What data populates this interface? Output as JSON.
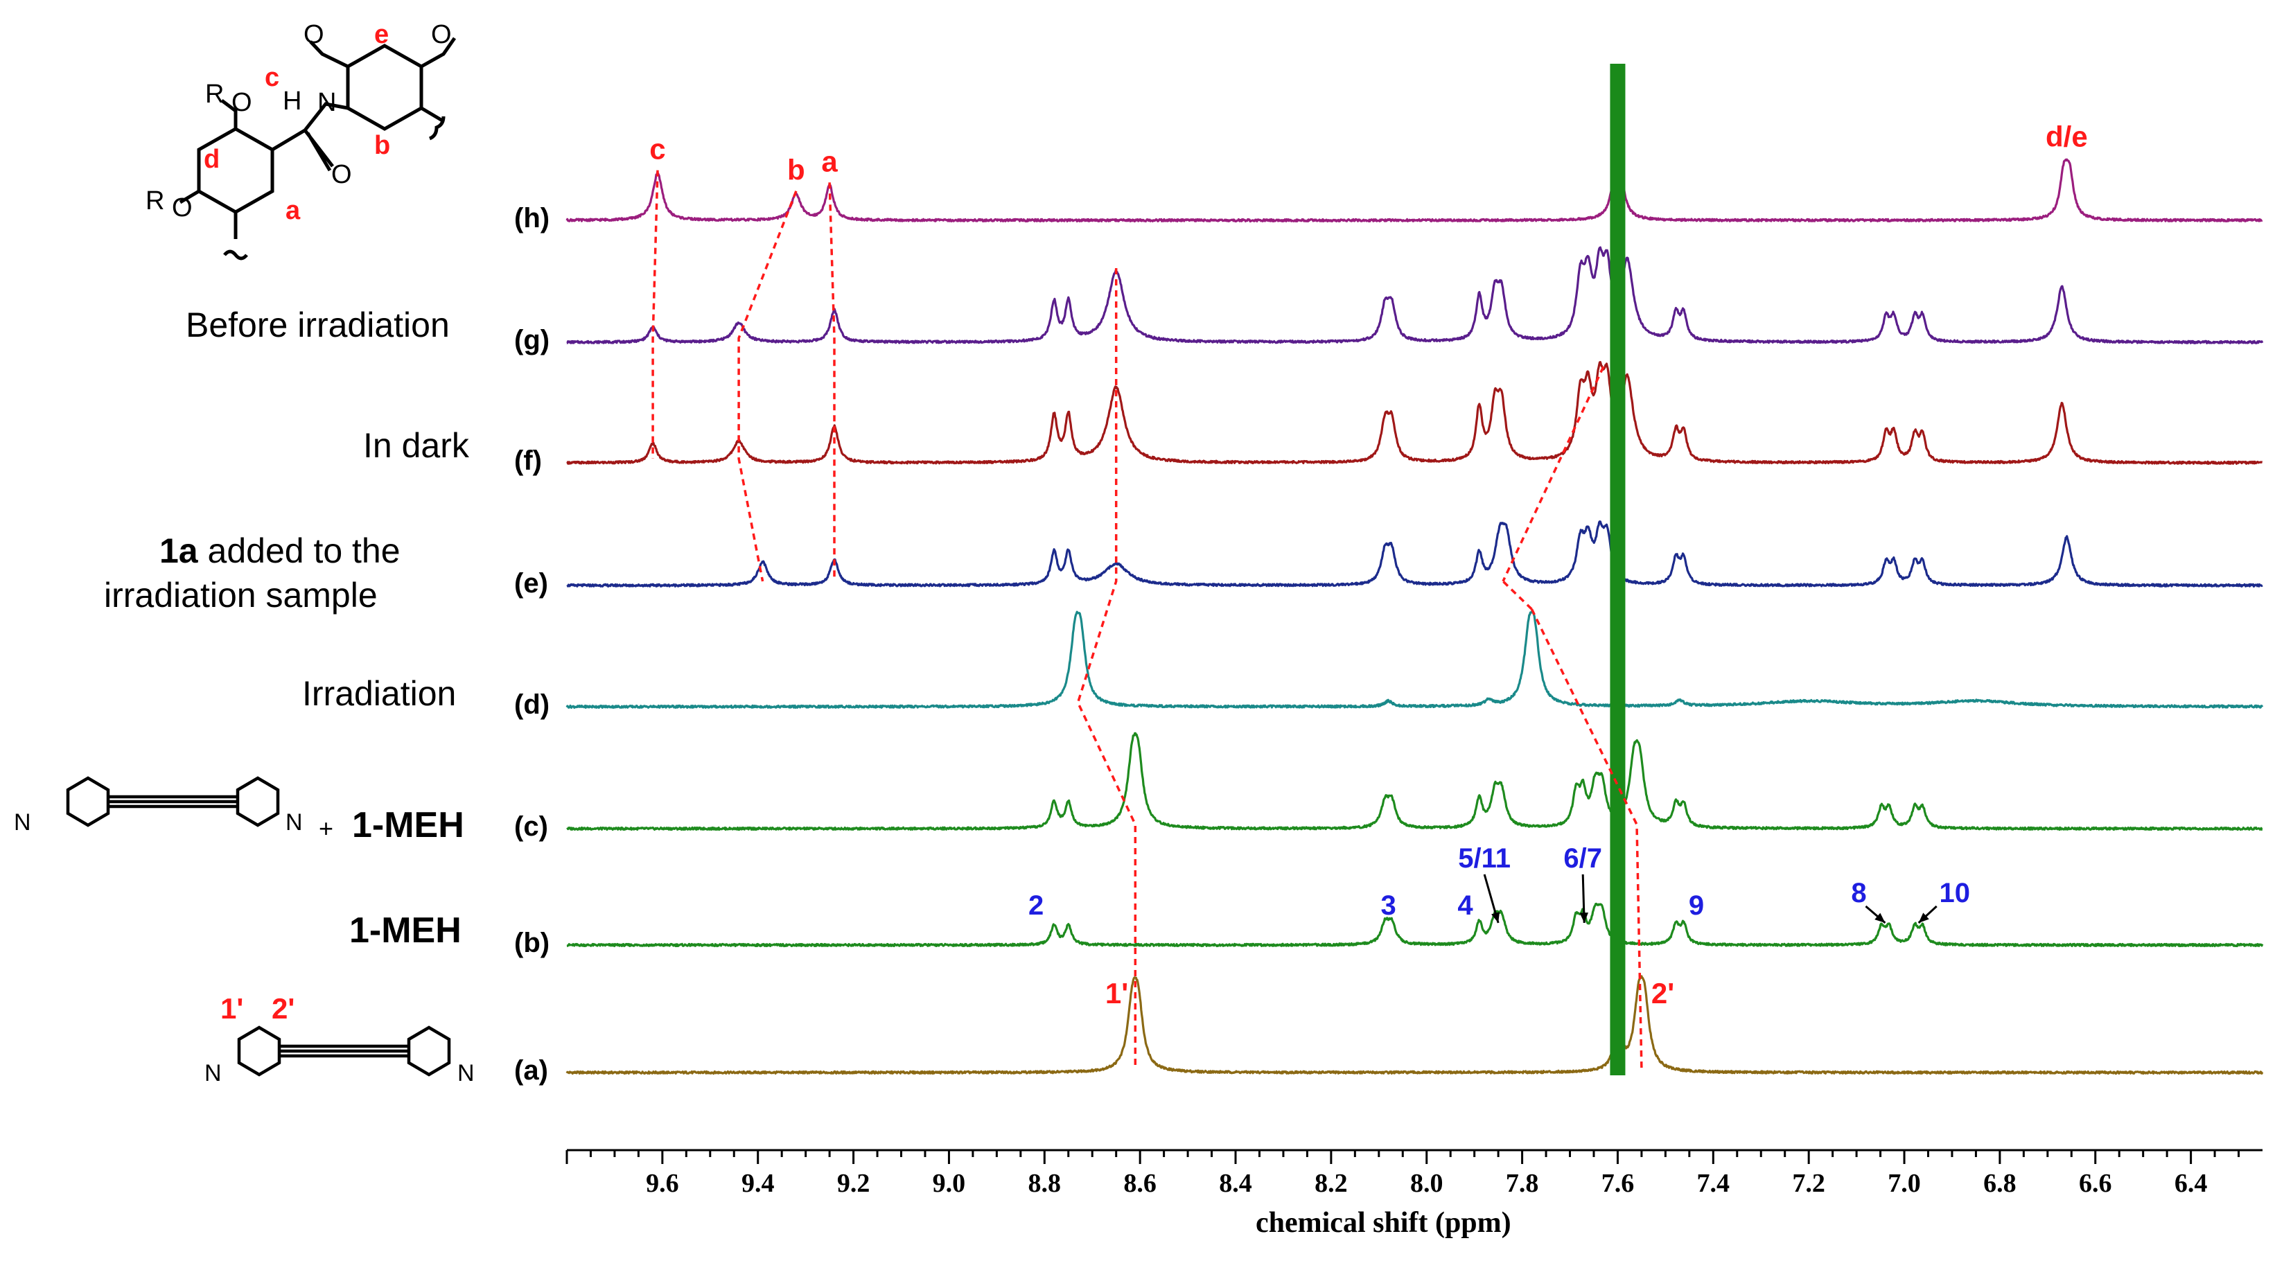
{
  "chart_data": {
    "type": "line",
    "title": "",
    "xlabel": "chemical shift (ppm)",
    "ylabel": "",
    "xlim": [
      9.8,
      6.25
    ],
    "x_reversed": true,
    "xticks": [
      9.6,
      9.4,
      9.2,
      9.0,
      8.8,
      8.6,
      8.4,
      8.2,
      8.0,
      7.8,
      7.6,
      7.4,
      7.2,
      7.0,
      6.8,
      6.6,
      6.4
    ],
    "xtick_labels": [
      "9.6",
      "9.4",
      "9.2",
      "9.0",
      "8.8",
      "8.6",
      "8.4",
      "8.2",
      "8.0",
      "7.8",
      "7.6",
      "7.4",
      "7.2",
      "7.0",
      "6.8",
      "6.6",
      "6.4"
    ],
    "solvent_peak_ppm": 7.6,
    "series": [
      {
        "id": "a",
        "name": "(a)",
        "description": "",
        "color": "#8B6914",
        "peaks": [
          {
            "ppm": 8.61,
            "h": 55,
            "w": 0.012,
            "split": 0.012
          },
          {
            "ppm": 7.55,
            "h": 55,
            "w": 0.012,
            "split": 0.012
          },
          {
            "ppm": 7.6,
            "h": 52,
            "w": 0.008,
            "split": 0
          }
        ]
      },
      {
        "id": "b",
        "name": "(b)",
        "description": "1-MEH",
        "color": "#1E8B1E",
        "peaks": [
          {
            "ppm": 8.78,
            "h": 18,
            "w": 0.008,
            "split": 0
          },
          {
            "ppm": 8.75,
            "h": 18,
            "w": 0.008,
            "split": 0
          },
          {
            "ppm": 8.08,
            "h": 18,
            "w": 0.01,
            "split": 0.014
          },
          {
            "ppm": 7.89,
            "h": 20,
            "w": 0.008,
            "split": 0
          },
          {
            "ppm": 7.85,
            "h": 22,
            "w": 0.01,
            "split": 0.014
          },
          {
            "ppm": 7.68,
            "h": 22,
            "w": 0.008,
            "split": 0.014
          },
          {
            "ppm": 7.64,
            "h": 26,
            "w": 0.01,
            "split": 0.014
          },
          {
            "ppm": 7.47,
            "h": 18,
            "w": 0.008,
            "split": 0.016
          },
          {
            "ppm": 7.04,
            "h": 16,
            "w": 0.008,
            "split": 0.016
          },
          {
            "ppm": 6.97,
            "h": 16,
            "w": 0.008,
            "split": 0.016
          }
        ]
      },
      {
        "id": "c",
        "name": "(c)",
        "description": "+ 1-MEH",
        "color": "#1E8B1E",
        "peaks": [
          {
            "ppm": 8.78,
            "h": 24,
            "w": 0.008,
            "split": 0
          },
          {
            "ppm": 8.75,
            "h": 24,
            "w": 0.008,
            "split": 0
          },
          {
            "ppm": 8.61,
            "h": 55,
            "w": 0.012,
            "split": 0.012
          },
          {
            "ppm": 8.08,
            "h": 22,
            "w": 0.01,
            "split": 0.014
          },
          {
            "ppm": 7.89,
            "h": 26,
            "w": 0.008,
            "split": 0
          },
          {
            "ppm": 7.85,
            "h": 30,
            "w": 0.01,
            "split": 0.014
          },
          {
            "ppm": 7.68,
            "h": 30,
            "w": 0.008,
            "split": 0.014
          },
          {
            "ppm": 7.64,
            "h": 34,
            "w": 0.01,
            "split": 0.014
          },
          {
            "ppm": 7.56,
            "h": 50,
            "w": 0.012,
            "split": 0.012
          },
          {
            "ppm": 7.47,
            "h": 20,
            "w": 0.008,
            "split": 0.016
          },
          {
            "ppm": 7.04,
            "h": 18,
            "w": 0.008,
            "split": 0.016
          },
          {
            "ppm": 6.97,
            "h": 18,
            "w": 0.008,
            "split": 0.016
          }
        ]
      },
      {
        "id": "d",
        "name": "(d)",
        "description": "Irradiation",
        "color": "#1A8A8A",
        "peaks": [
          {
            "ppm": 8.73,
            "h": 55,
            "w": 0.012,
            "split": 0.012
          },
          {
            "ppm": 7.78,
            "h": 55,
            "w": 0.012,
            "split": 0.012
          },
          {
            "ppm": 8.08,
            "h": 5,
            "w": 0.01,
            "split": 0
          },
          {
            "ppm": 7.87,
            "h": 5,
            "w": 0.01,
            "split": 0
          },
          {
            "ppm": 7.47,
            "h": 5,
            "w": 0.01,
            "split": 0
          },
          {
            "ppm": 7.2,
            "h": 5,
            "w": 0.12,
            "split": 0
          },
          {
            "ppm": 6.85,
            "h": 5,
            "w": 0.1,
            "split": 0
          }
        ]
      },
      {
        "id": "e",
        "name": "(e)",
        "description": "1a added to the irradiation sample",
        "color": "#1C2B8C",
        "peaks": [
          {
            "ppm": 9.39,
            "h": 22,
            "w": 0.012,
            "split": 0
          },
          {
            "ppm": 9.24,
            "h": 24,
            "w": 0.01,
            "split": 0
          },
          {
            "ppm": 8.78,
            "h": 30,
            "w": 0.008,
            "split": 0
          },
          {
            "ppm": 8.75,
            "h": 30,
            "w": 0.008,
            "split": 0
          },
          {
            "ppm": 8.65,
            "h": 20,
            "w": 0.03,
            "split": 0
          },
          {
            "ppm": 8.08,
            "h": 28,
            "w": 0.01,
            "split": 0.014
          },
          {
            "ppm": 7.89,
            "h": 28,
            "w": 0.008,
            "split": 0
          },
          {
            "ppm": 7.84,
            "h": 38,
            "w": 0.012,
            "split": 0.014
          },
          {
            "ppm": 7.67,
            "h": 36,
            "w": 0.01,
            "split": 0.016
          },
          {
            "ppm": 7.63,
            "h": 40,
            "w": 0.01,
            "split": 0.016
          },
          {
            "ppm": 7.47,
            "h": 24,
            "w": 0.008,
            "split": 0.016
          },
          {
            "ppm": 7.03,
            "h": 20,
            "w": 0.008,
            "split": 0.016
          },
          {
            "ppm": 6.97,
            "h": 20,
            "w": 0.008,
            "split": 0.016
          },
          {
            "ppm": 6.66,
            "h": 45,
            "w": 0.012,
            "split": 0
          }
        ]
      },
      {
        "id": "f",
        "name": "(f)",
        "description": "In dark",
        "color": "#A01818",
        "peaks": [
          {
            "ppm": 9.62,
            "h": 18,
            "w": 0.01,
            "split": 0
          },
          {
            "ppm": 9.44,
            "h": 20,
            "w": 0.015,
            "split": 0
          },
          {
            "ppm": 9.24,
            "h": 34,
            "w": 0.01,
            "split": 0
          },
          {
            "ppm": 8.78,
            "h": 42,
            "w": 0.008,
            "split": 0
          },
          {
            "ppm": 8.75,
            "h": 42,
            "w": 0.008,
            "split": 0
          },
          {
            "ppm": 8.65,
            "h": 70,
            "w": 0.02,
            "split": 0
          },
          {
            "ppm": 8.08,
            "h": 34,
            "w": 0.01,
            "split": 0.014
          },
          {
            "ppm": 7.89,
            "h": 48,
            "w": 0.008,
            "split": 0
          },
          {
            "ppm": 7.85,
            "h": 48,
            "w": 0.01,
            "split": 0.014
          },
          {
            "ppm": 7.67,
            "h": 54,
            "w": 0.01,
            "split": 0.016
          },
          {
            "ppm": 7.63,
            "h": 60,
            "w": 0.01,
            "split": 0.016
          },
          {
            "ppm": 7.58,
            "h": 75,
            "w": 0.015,
            "split": 0
          },
          {
            "ppm": 7.47,
            "h": 26,
            "w": 0.008,
            "split": 0.016
          },
          {
            "ppm": 7.03,
            "h": 26,
            "w": 0.008,
            "split": 0.016
          },
          {
            "ppm": 6.97,
            "h": 24,
            "w": 0.008,
            "split": 0.016
          },
          {
            "ppm": 6.67,
            "h": 55,
            "w": 0.012,
            "split": 0
          }
        ]
      },
      {
        "id": "g",
        "name": "(g)",
        "description": "Before irradiation",
        "color": "#5A1E8C",
        "peaks": [
          {
            "ppm": 9.62,
            "h": 14,
            "w": 0.01,
            "split": 0
          },
          {
            "ppm": 9.44,
            "h": 18,
            "w": 0.015,
            "split": 0
          },
          {
            "ppm": 9.24,
            "h": 30,
            "w": 0.01,
            "split": 0
          },
          {
            "ppm": 8.78,
            "h": 36,
            "w": 0.008,
            "split": 0
          },
          {
            "ppm": 8.75,
            "h": 36,
            "w": 0.008,
            "split": 0
          },
          {
            "ppm": 8.65,
            "h": 66,
            "w": 0.02,
            "split": 0
          },
          {
            "ppm": 8.08,
            "h": 30,
            "w": 0.01,
            "split": 0.014
          },
          {
            "ppm": 7.89,
            "h": 40,
            "w": 0.008,
            "split": 0
          },
          {
            "ppm": 7.85,
            "h": 40,
            "w": 0.01,
            "split": 0.014
          },
          {
            "ppm": 7.67,
            "h": 52,
            "w": 0.01,
            "split": 0.016
          },
          {
            "ppm": 7.63,
            "h": 56,
            "w": 0.01,
            "split": 0.016
          },
          {
            "ppm": 7.58,
            "h": 72,
            "w": 0.015,
            "split": 0
          },
          {
            "ppm": 7.47,
            "h": 24,
            "w": 0.008,
            "split": 0.016
          },
          {
            "ppm": 7.03,
            "h": 22,
            "w": 0.008,
            "split": 0.016
          },
          {
            "ppm": 6.97,
            "h": 22,
            "w": 0.008,
            "split": 0.016
          },
          {
            "ppm": 6.67,
            "h": 52,
            "w": 0.012,
            "split": 0
          }
        ]
      },
      {
        "id": "h",
        "name": "(h)",
        "description": "",
        "color": "#9B1E7E",
        "peaks": [
          {
            "ppm": 9.61,
            "h": 44,
            "w": 0.012,
            "split": 0
          },
          {
            "ppm": 9.32,
            "h": 24,
            "w": 0.012,
            "split": 0
          },
          {
            "ppm": 9.25,
            "h": 32,
            "w": 0.01,
            "split": 0
          },
          {
            "ppm": 7.6,
            "h": 80,
            "w": 0.01,
            "split": 0
          },
          {
            "ppm": 6.66,
            "h": 38,
            "w": 0.01,
            "split": 0.012
          }
        ]
      }
    ],
    "correlation_lines": [
      {
        "points": [
          [
            "h",
            9.61
          ],
          [
            "g",
            9.62
          ],
          [
            "f",
            9.62
          ]
        ]
      },
      {
        "points": [
          [
            "h",
            9.32
          ],
          [
            "g",
            9.44
          ],
          [
            "f",
            9.44
          ],
          [
            "e",
            9.39
          ]
        ]
      },
      {
        "points": [
          [
            "h",
            9.25
          ],
          [
            "g",
            9.24
          ],
          [
            "f",
            9.24
          ],
          [
            "e",
            9.24
          ]
        ]
      },
      {
        "points": [
          [
            "g",
            8.65
          ],
          [
            "f",
            8.65
          ],
          [
            "e",
            8.65
          ],
          [
            "d",
            8.73
          ],
          [
            "c",
            8.61
          ],
          [
            "a",
            8.61
          ]
        ]
      },
      {
        "points": [
          [
            "d",
            7.78
          ],
          [
            "e",
            7.84
          ]
        ]
      },
      {
        "points": [
          [
            "f",
            7.63
          ],
          [
            "e",
            7.84
          ]
        ]
      },
      {
        "points": [
          [
            "d",
            7.78
          ],
          [
            "c",
            7.56
          ],
          [
            "a",
            7.55
          ]
        ]
      }
    ],
    "annotations": {
      "red_labels": [
        {
          "series": "h",
          "ppm": 9.61,
          "text": "c"
        },
        {
          "series": "h",
          "ppm": 9.32,
          "text": "b"
        },
        {
          "series": "h",
          "ppm": 9.25,
          "text": "a"
        },
        {
          "series": "h",
          "ppm": 6.66,
          "text": "d/e"
        },
        {
          "series": "a",
          "ppm": 8.61,
          "text": "1'"
        },
        {
          "series": "a",
          "ppm": 7.55,
          "text": "2'"
        }
      ],
      "blue_labels": [
        {
          "series": "b",
          "ppm": 8.78,
          "text": "2"
        },
        {
          "series": "b",
          "ppm": 8.08,
          "text": "3"
        },
        {
          "series": "b",
          "ppm": 7.89,
          "text": "4"
        },
        {
          "series": "b",
          "ppm": 7.85,
          "text": "5/11"
        },
        {
          "series": "b",
          "ppm": 7.67,
          "text": "6/7"
        },
        {
          "series": "b",
          "ppm": 7.47,
          "text": "9"
        },
        {
          "series": "b",
          "ppm": 7.04,
          "text": "8"
        },
        {
          "series": "b",
          "ppm": 6.97,
          "text": "10"
        }
      ]
    },
    "structure_labels": {
      "top_atoms": [
        "O",
        "O",
        "O",
        "O",
        "N",
        "H",
        "O"
      ],
      "top_r": [
        "R",
        "R"
      ],
      "top_letters": [
        "e",
        "c",
        "d",
        "b",
        "a"
      ],
      "pyridine_n": "N",
      "mid_plus": "+",
      "mid_compound": "1-MEH",
      "bottom_labels": [
        "1'",
        "2'"
      ]
    }
  },
  "colors": {
    "red_annotation": "#FF1A1A",
    "blue_annotation": "#1E1EE0",
    "solvent_peak": "#1A8A1A",
    "axis": "#000000"
  }
}
